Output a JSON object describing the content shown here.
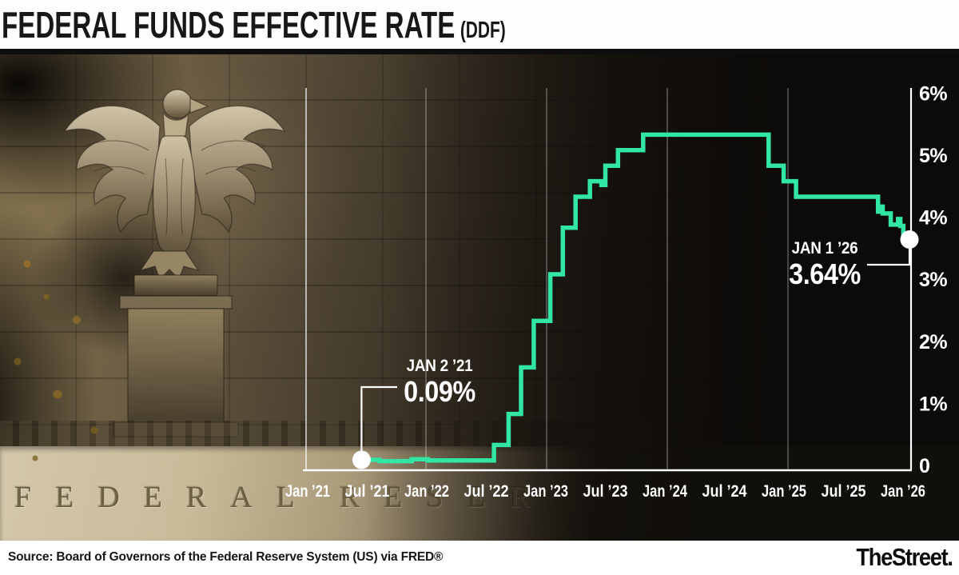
{
  "header": {
    "title": "FEDERAL FUNDS EFFECTIVE RATE",
    "title_suffix": "(DDF)"
  },
  "photo": {
    "inscription_left": "FEDERAL",
    "inscription_right": "RESER"
  },
  "footer": {
    "source": "Source: Board of Governors of the Federal Reserve System (US) via FRED®",
    "brand": "TheStreet."
  },
  "chart_data": {
    "type": "line",
    "step": "after",
    "title": "Federal Funds Effective Rate (DDF)",
    "series_name": "Federal Funds Effective Rate",
    "line_color": "#32e6a4",
    "axis_color": "#ffffff",
    "gridline_color": "rgba(255,255,255,0.38)",
    "background": "dark photo of Federal Reserve building",
    "ylim": [
      0,
      6
    ],
    "y_tick_values": [
      6,
      5,
      4,
      3,
      2,
      1,
      0
    ],
    "y_tick_labels": [
      "6%",
      "5%",
      "4%",
      "3%",
      "2%",
      "1%",
      "0"
    ],
    "x_tick_labels": [
      "Jan ’21",
      "Jul ’21",
      "Jan ’22",
      "Jul ’22",
      "Jan ’23",
      "Jul ’23",
      "Jan ’24",
      "Jul ’24",
      "Jan ’25",
      "Jul ’25",
      "Jan ’26"
    ],
    "x_range": [
      "2021-01-02",
      "2026-01-01"
    ],
    "grid": "vertical lines at each January",
    "legend": "none",
    "points": [
      [
        "2021-01-02",
        0.09
      ],
      [
        "2021-03-01",
        0.07
      ],
      [
        "2021-06-17",
        0.1
      ],
      [
        "2021-08-10",
        0.08
      ],
      [
        "2022-03-17",
        0.33
      ],
      [
        "2022-05-05",
        0.83
      ],
      [
        "2022-06-16",
        1.58
      ],
      [
        "2022-07-28",
        2.33
      ],
      [
        "2022-09-22",
        3.08
      ],
      [
        "2022-11-03",
        3.83
      ],
      [
        "2022-12-15",
        4.33
      ],
      [
        "2023-02-02",
        4.58
      ],
      [
        "2023-03-10",
        4.52
      ],
      [
        "2023-03-23",
        4.83
      ],
      [
        "2023-05-04",
        5.08
      ],
      [
        "2023-07-27",
        5.33
      ],
      [
        "2024-09-19",
        4.83
      ],
      [
        "2024-11-08",
        4.58
      ],
      [
        "2024-12-19",
        4.33
      ],
      [
        "2025-09-18",
        4.09
      ],
      [
        "2025-09-26",
        4.17
      ],
      [
        "2025-10-03",
        4.06
      ],
      [
        "2025-10-30",
        3.88
      ],
      [
        "2025-11-24",
        3.97
      ],
      [
        "2025-12-01",
        3.86
      ],
      [
        "2025-12-11",
        3.64
      ],
      [
        "2026-01-01",
        3.64
      ]
    ],
    "annotations": [
      {
        "label": "JAN 2 ’21",
        "value": "0.09%",
        "date": "2021-01-02",
        "y": 0.09
      },
      {
        "label": "JAN 1 ’26",
        "value": "3.64%",
        "date": "2026-01-01",
        "y": 3.64
      }
    ]
  }
}
